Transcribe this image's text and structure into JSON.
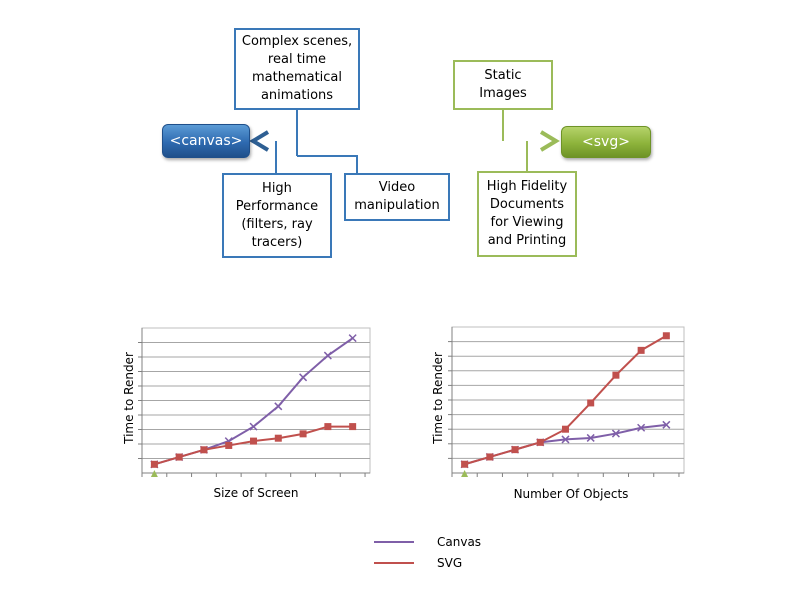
{
  "diagram": {
    "canvas_label": "<canvas>",
    "svg_label": "<svg>",
    "boxes": {
      "complex": "Complex scenes,\nreal time\nmathematical\nanimations",
      "static": "Static\nImages",
      "performance": "High\nPerformance\n(filters, ray\ntracers)",
      "video": "Video\nmanipulation",
      "fidelity": "High Fidelity\nDocuments\nfor Viewing\nand Printing"
    },
    "colors": {
      "blue": "#3a78b8",
      "green": "#9bbb59",
      "arrow_dark": "#2e5f93",
      "arrow_light": "#9bbb59"
    }
  },
  "chart_data": [
    {
      "type": "line",
      "xlabel": "Size of Screen",
      "ylabel": "Time to Render",
      "x": [
        1,
        2,
        3,
        4,
        5,
        6,
        7,
        8,
        9
      ],
      "series": [
        {
          "name": "Canvas",
          "color": "#7f5fa8",
          "marker": "x",
          "values": [
            0.6,
            1.1,
            1.6,
            2.2,
            3.2,
            4.6,
            6.6,
            8.1,
            9.3
          ]
        },
        {
          "name": "SVG",
          "color": "#c0504d",
          "marker": "square",
          "values": [
            0.6,
            1.1,
            1.6,
            1.9,
            2.2,
            2.4,
            2.7,
            3.2,
            3.2
          ]
        }
      ],
      "ylim": [
        0,
        10
      ],
      "grid": true,
      "tick_labels_shown": false
    },
    {
      "type": "line",
      "xlabel": "Number Of Objects",
      "ylabel": "Time to Render",
      "x": [
        1,
        2,
        3,
        4,
        5,
        6,
        7,
        8,
        9
      ],
      "series": [
        {
          "name": "Canvas",
          "color": "#7f5fa8",
          "marker": "x",
          "values": [
            0.6,
            1.1,
            1.6,
            2.1,
            2.3,
            2.4,
            2.7,
            3.1,
            3.3
          ]
        },
        {
          "name": "SVG",
          "color": "#c0504d",
          "marker": "square",
          "values": [
            0.6,
            1.1,
            1.6,
            2.1,
            3.0,
            4.8,
            6.7,
            8.4,
            9.4
          ]
        }
      ],
      "ylim": [
        0,
        10
      ],
      "grid": true,
      "tick_labels_shown": false
    }
  ],
  "legend": [
    {
      "name": "Canvas",
      "color": "#7f5fa8"
    },
    {
      "name": "SVG",
      "color": "#c0504d"
    }
  ]
}
